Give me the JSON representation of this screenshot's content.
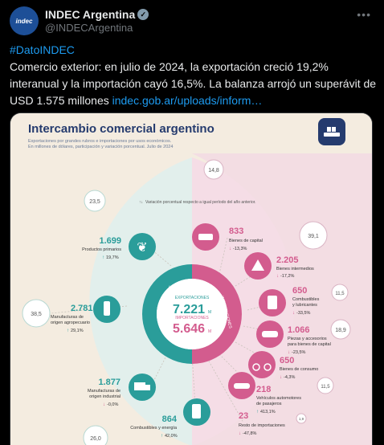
{
  "post": {
    "author_name": "INDEC Argentina",
    "author_handle": "@INDECArgentina",
    "avatar_text": "indec",
    "verified_icon": "verified-badge-icon",
    "more_icon": "more-icon",
    "hashtag": "#DatoINDEC",
    "text": "Comercio exterior: en julio de 2024, la exportación creció 19,2% interanual y la importación cayó 16,5%. La balanza arrojó un superávit de USD 1.575 millones ",
    "link_text": "indec.gob.ar/uploads/inform…"
  },
  "infographic": {
    "title": "Intercambio comercial argentino",
    "subtitle1": "Exportaciones por grandes rubros e importaciones por usos económicos.",
    "subtitle2": "En millones de dólares, participación y variación porcentual. Julio de 2024",
    "legend_note": "Variación porcentual respecto a igual período del año anterior.",
    "center": {
      "exp_label": "EXPORTACIONES",
      "exp_value": "7.221",
      "imp_label": "IMPORTACIONES",
      "imp_value": "5.646",
      "unit": "M",
      "left_ring": "EXPORTACIONES",
      "right_ring": "IMPORTACIONES"
    },
    "bubbles": {
      "b_14_8": "14,8",
      "b_23_5": "23,5",
      "b_39_1": "39,1",
      "b_38_5": "38,5",
      "b_11_5a": "11,5",
      "b_18_9": "18,9",
      "b_11_5b": "11,5",
      "b_26_0": "26,0",
      "b_1_9": "1,9"
    },
    "exports": [
      {
        "value": "1.699",
        "label": "Productos primarios",
        "change": "19,7%"
      },
      {
        "value": "2.781",
        "label": "Manufacturas de origen agropecuario",
        "change": "29,1%"
      },
      {
        "value": "1.877",
        "label": "Manufacturas de origen industrial",
        "change": "-0,0%"
      },
      {
        "value": "864",
        "label": "Combustibles y energía",
        "change": "42,0%"
      }
    ],
    "imports": [
      {
        "value": "833",
        "label": "Bienes de capital",
        "change": "-13,3%"
      },
      {
        "value": "2.205",
        "label": "Bienes intermedios",
        "change": "-17,2%"
      },
      {
        "value": "650",
        "label": "Combustibles y lubricantes",
        "change": "-33,5%"
      },
      {
        "value": "1.066",
        "label": "Piezas y accesorios para bienes de capital",
        "change": "-23,5%"
      },
      {
        "value": "650",
        "label": "Bienes de consumo",
        "change": "-4,3%"
      },
      {
        "value": "218",
        "label": "Vehículos automotores de pasajeros",
        "change": "413,1%"
      },
      {
        "value": "23",
        "label": "Resto de importaciones",
        "change": "-47,8%"
      }
    ],
    "colors": {
      "teal": "#2a9d9a",
      "pink": "#d35c8e",
      "bg": "#f4ece0",
      "navy": "#253b6e"
    }
  }
}
